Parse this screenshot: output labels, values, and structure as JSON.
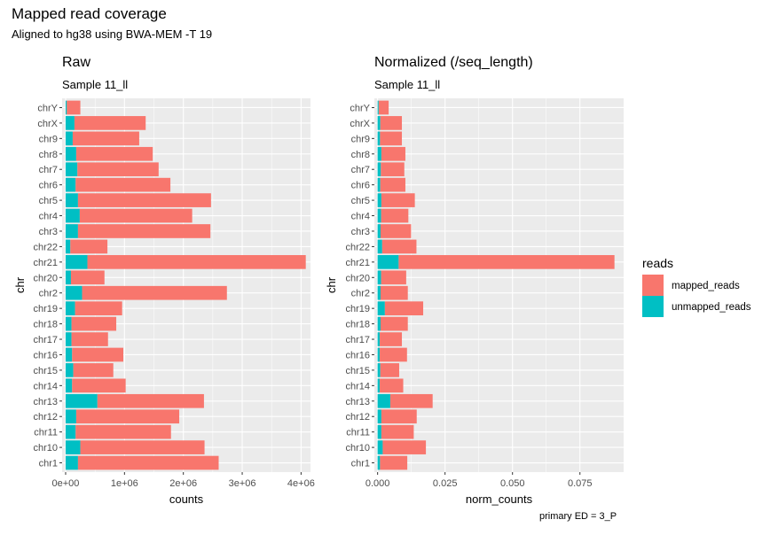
{
  "title": "Mapped read coverage",
  "subtitle": "Aligned to hg38 using BWA-MEM -T 19",
  "caption": "primary ED = 3_P",
  "colors": {
    "mapped_reads": "#F8766D",
    "unmapped_reads": "#00BFC4",
    "panel_bg": "#EBEBEB",
    "grid": "#FFFFFF"
  },
  "chart_data": [
    {
      "type": "bar",
      "orientation": "horizontal",
      "stacked": true,
      "title": "Raw",
      "subtitle": "Sample 11_ll",
      "xlabel": "counts",
      "ylabel": "chr",
      "categories": [
        "chr1",
        "chr10",
        "chr11",
        "chr12",
        "chr13",
        "chr14",
        "chr15",
        "chr16",
        "chr17",
        "chr18",
        "chr19",
        "chr2",
        "chr20",
        "chr21",
        "chr22",
        "chr3",
        "chr4",
        "chr5",
        "chr6",
        "chr7",
        "chr8",
        "chr9",
        "chrX",
        "chrY"
      ],
      "x_ticks": [
        "0e+00",
        "1e+06",
        "2e+06",
        "3e+06",
        "4e+06"
      ],
      "x_tick_values": [
        0,
        1000000,
        2000000,
        3000000,
        4000000
      ],
      "xlim": [
        -60000,
        4160000
      ],
      "series": [
        {
          "name": "unmapped_reads",
          "values": [
            210000,
            250000,
            170000,
            180000,
            540000,
            110000,
            130000,
            110000,
            100000,
            100000,
            160000,
            280000,
            90000,
            370000,
            80000,
            210000,
            240000,
            210000,
            170000,
            200000,
            180000,
            120000,
            150000,
            20000
          ]
        },
        {
          "name": "mapped_reads",
          "values": [
            2390000,
            2110000,
            1620000,
            1750000,
            1810000,
            910000,
            680000,
            870000,
            620000,
            760000,
            800000,
            2460000,
            570000,
            3710000,
            630000,
            2250000,
            1910000,
            2260000,
            1610000,
            1380000,
            1300000,
            1130000,
            1210000,
            230000
          ]
        }
      ],
      "grid": true
    },
    {
      "type": "bar",
      "orientation": "horizontal",
      "stacked": true,
      "title": "Normalized (/seq_length)",
      "subtitle": "Sample 11_ll",
      "xlabel": "norm_counts",
      "ylabel": "chr",
      "categories": [
        "chr1",
        "chr10",
        "chr11",
        "chr12",
        "chr13",
        "chr14",
        "chr15",
        "chr16",
        "chr17",
        "chr18",
        "chr19",
        "chr2",
        "chr20",
        "chr21",
        "chr22",
        "chr3",
        "chr4",
        "chr5",
        "chr6",
        "chr7",
        "chr8",
        "chr9",
        "chrX",
        "chrY"
      ],
      "x_ticks": [
        "0.000",
        "0.025",
        "0.050",
        "0.075"
      ],
      "x_tick_values": [
        0,
        0.025,
        0.05,
        0.075
      ],
      "xlim": [
        -0.0012,
        0.0912
      ],
      "series": [
        {
          "name": "unmapped_reads",
          "values": [
            0.0009,
            0.0019,
            0.0014,
            0.0014,
            0.0047,
            0.0008,
            0.001,
            0.0008,
            0.0008,
            0.0011,
            0.0027,
            0.0011,
            0.0013,
            0.0078,
            0.0017,
            0.0011,
            0.0013,
            0.0014,
            0.001,
            0.0012,
            0.0014,
            0.0009,
            0.001,
            0.0004
          ]
        },
        {
          "name": "mapped_reads",
          "values": [
            0.0101,
            0.016,
            0.012,
            0.0131,
            0.0157,
            0.0087,
            0.007,
            0.0101,
            0.0082,
            0.0101,
            0.0142,
            0.0101,
            0.0093,
            0.08,
            0.0127,
            0.0113,
            0.0101,
            0.0124,
            0.0093,
            0.0087,
            0.0089,
            0.0081,
            0.008,
            0.0037
          ]
        }
      ],
      "grid": true
    }
  ],
  "legend": {
    "title": "reads",
    "placement": "right",
    "items": [
      {
        "label": "mapped_reads",
        "color": "#F8766D"
      },
      {
        "label": "unmapped_reads",
        "color": "#00BFC4"
      }
    ]
  }
}
